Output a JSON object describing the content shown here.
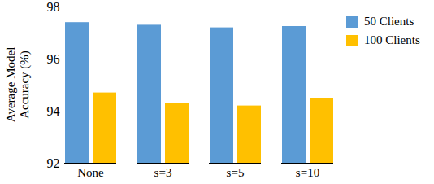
{
  "chart_data": {
    "type": "bar",
    "categories": [
      "None",
      "s=3",
      "s=5",
      "s=10"
    ],
    "series": [
      {
        "name": "50 Clients",
        "color": "#5b9bd5",
        "values": [
          97.4,
          97.3,
          97.2,
          97.25
        ]
      },
      {
        "name": "100 Clients",
        "color": "#ffc000",
        "values": [
          94.7,
          94.3,
          94.2,
          94.5
        ]
      }
    ],
    "y_label": "Average Model\nAccuracy (%)",
    "ylim": [
      92,
      98
    ],
    "yticks": [
      92,
      94,
      96,
      98
    ],
    "legend": "right",
    "grid": false
  }
}
